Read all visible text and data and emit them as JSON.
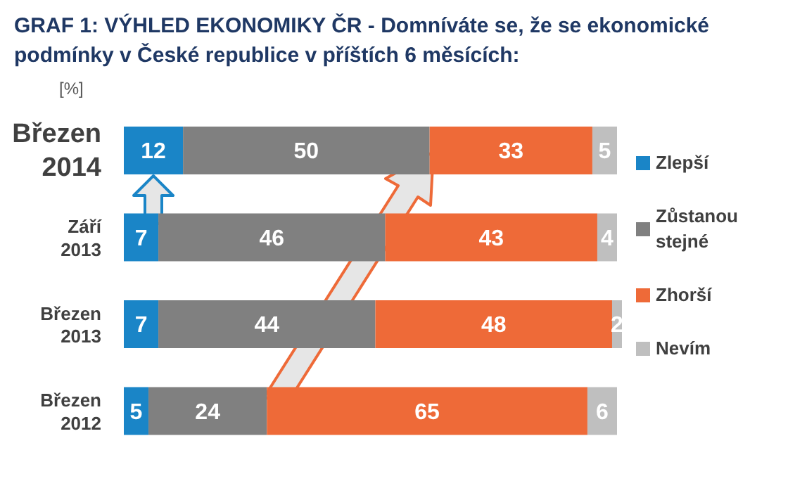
{
  "chart_data": {
    "type": "bar",
    "title": "GRAF 1: VÝHLED EKONOMIKY ČR - Domníváte se, že se ekonomické podmínky v České republice v příštích 6 měsících:",
    "ylabel": "[%]",
    "orientation": "horizontal",
    "stacked": true,
    "data_labels": true,
    "legend": "right",
    "categories": [
      "Březen 2014",
      "Září 2013",
      "Březen 2013",
      "Březen 2012"
    ],
    "series": [
      {
        "name": "Zlepší",
        "color": "#1a85c7",
        "values": [
          12,
          7,
          7,
          5
        ]
      },
      {
        "name": "Zůstanou stejné",
        "color": "#808080",
        "values": [
          50,
          46,
          44,
          24
        ]
      },
      {
        "name": "Zhorší",
        "color": "#ee6a38",
        "values": [
          33,
          43,
          48,
          65
        ]
      },
      {
        "name": "Nevím",
        "color": "#bfbfbf",
        "values": [
          5,
          4,
          2,
          6
        ]
      }
    ]
  }
}
